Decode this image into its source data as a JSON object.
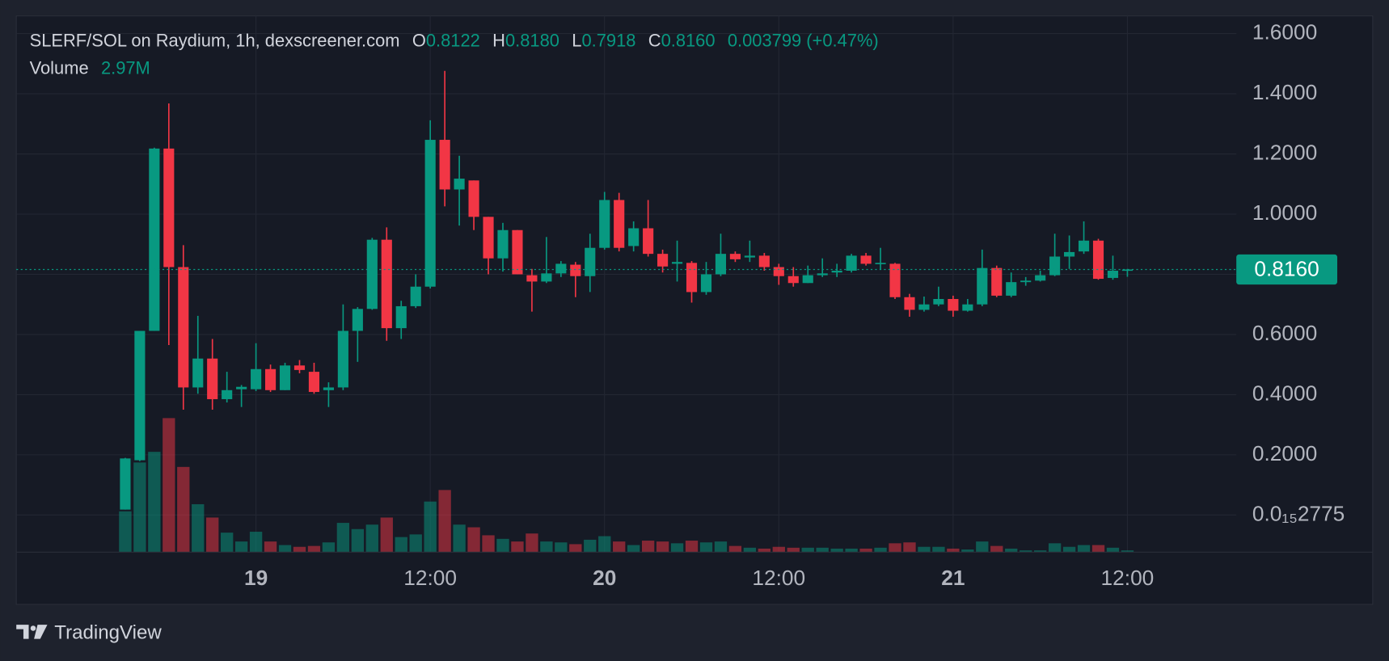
{
  "chart_data": {
    "type": "candlestick",
    "legend": {
      "title": "SLERF/SOL on Raydium, 1h, dexscreener.com",
      "o_label": "O",
      "o": "0.8122",
      "h_label": "H",
      "h": "0.8180",
      "l_label": "L",
      "l": "0.7918",
      "c_label": "C",
      "c": "0.8160",
      "change": "0.003799 (+0.47%)",
      "volume_label": "Volume",
      "volume_value": "2.97M"
    },
    "up_color": "#089981",
    "down_color": "#f23645",
    "last_price": 0.816,
    "last_price_label": "0.8160",
    "ylim": [
      -0.1235,
      1.6588
    ],
    "yticks": [
      {
        "value": 2.775e-17,
        "label": "0.0₁₅2775"
      },
      {
        "value": 0.2,
        "label": "0.2000"
      },
      {
        "value": 0.4,
        "label": "0.4000"
      },
      {
        "value": 0.6,
        "label": "0.6000"
      },
      {
        "value": 0.8,
        "label": "0.8000"
      },
      {
        "value": 1.0,
        "label": "1.0000"
      },
      {
        "value": 1.2,
        "label": "1.2000"
      },
      {
        "value": 1.4,
        "label": "1.4000"
      },
      {
        "value": 1.6,
        "label": "1.6000"
      }
    ],
    "xlim": [
      "18 07:30",
      "21 19:30"
    ],
    "xticks": [
      {
        "value": "19 00:00",
        "label": "19"
      },
      {
        "value": "19 12:00",
        "label": "12:00"
      },
      {
        "value": "20 00:00",
        "label": "20"
      },
      {
        "value": "20 12:00",
        "label": "12:00"
      },
      {
        "value": "21 00:00",
        "label": "21"
      },
      {
        "value": "21 12:00",
        "label": "12:00"
      }
    ],
    "grid": true,
    "x": [
      "18 15:00",
      "18 16:00",
      "18 17:00",
      "18 18:00",
      "18 19:00",
      "18 20:00",
      "18 21:00",
      "18 22:00",
      "18 23:00",
      "19 00:00",
      "19 01:00",
      "19 02:00",
      "19 03:00",
      "19 04:00",
      "19 05:00",
      "19 06:00",
      "19 07:00",
      "19 08:00",
      "19 09:00",
      "19 10:00",
      "19 11:00",
      "19 12:00",
      "19 13:00",
      "19 14:00",
      "19 15:00",
      "19 16:00",
      "19 17:00",
      "19 18:00",
      "19 19:00",
      "19 20:00",
      "19 21:00",
      "19 22:00",
      "19 23:00",
      "20 00:00",
      "20 01:00",
      "20 02:00",
      "20 03:00",
      "20 04:00",
      "20 05:00",
      "20 06:00",
      "20 07:00",
      "20 08:00",
      "20 09:00",
      "20 10:00",
      "20 11:00",
      "20 12:00",
      "20 13:00",
      "20 14:00",
      "20 15:00",
      "20 16:00",
      "20 17:00",
      "20 18:00",
      "20 19:00",
      "20 20:00",
      "20 21:00",
      "20 22:00",
      "20 23:00",
      "21 00:00",
      "21 01:00",
      "21 02:00",
      "21 03:00",
      "21 04:00",
      "21 05:00",
      "21 06:00",
      "21 07:00",
      "21 08:00",
      "21 09:00",
      "21 10:00",
      "21 11:00",
      "21 12:00"
    ],
    "open": [
      0.018,
      0.182,
      0.612,
      1.218,
      0.824,
      0.424,
      0.52,
      0.385,
      0.418,
      0.418,
      0.485,
      0.415,
      0.497,
      0.476,
      0.415,
      0.424,
      0.612,
      0.685,
      0.915,
      0.621,
      0.694,
      0.759,
      1.247,
      1.082,
      1.112,
      0.991,
      0.853,
      0.947,
      0.797,
      0.776,
      0.803,
      0.832,
      0.794,
      0.888,
      1.047,
      0.894,
      0.953,
      0.868,
      0.835,
      0.838,
      0.741,
      0.8,
      0.868,
      0.856,
      0.862,
      0.824,
      0.794,
      0.771,
      0.797,
      0.806,
      0.812,
      0.862,
      0.835,
      0.835,
      0.724,
      0.682,
      0.7,
      0.718,
      0.679,
      0.7,
      0.821,
      0.729,
      0.774,
      0.779,
      0.797,
      0.859,
      0.876,
      0.912,
      0.788,
      0.8122
    ],
    "high": [
      0.19,
      0.612,
      1.221,
      1.368,
      0.897,
      0.662,
      0.585,
      0.476,
      0.432,
      0.571,
      0.5,
      0.506,
      0.515,
      0.506,
      0.441,
      0.7,
      0.691,
      0.921,
      0.956,
      0.712,
      0.8,
      1.312,
      1.476,
      1.194,
      1.112,
      0.991,
      0.971,
      0.947,
      0.818,
      0.924,
      0.844,
      0.841,
      0.935,
      1.074,
      1.071,
      0.976,
      1.047,
      0.882,
      0.912,
      0.844,
      0.841,
      0.935,
      0.876,
      0.912,
      0.871,
      0.835,
      0.824,
      0.829,
      0.853,
      0.835,
      0.868,
      0.871,
      0.888,
      0.838,
      0.735,
      0.726,
      0.759,
      0.729,
      0.718,
      0.882,
      0.829,
      0.806,
      0.791,
      0.812,
      0.935,
      0.929,
      0.976,
      0.918,
      0.862,
      0.818
    ],
    "low": [
      0.018,
      0.179,
      0.612,
      0.565,
      0.35,
      0.403,
      0.35,
      0.374,
      0.359,
      0.412,
      0.409,
      0.415,
      0.471,
      0.403,
      0.359,
      0.415,
      0.509,
      0.682,
      0.579,
      0.585,
      0.688,
      0.753,
      1.026,
      0.962,
      0.947,
      0.8,
      0.809,
      0.8,
      0.676,
      0.771,
      0.791,
      0.724,
      0.741,
      0.882,
      0.876,
      0.876,
      0.859,
      0.806,
      0.776,
      0.706,
      0.732,
      0.794,
      0.841,
      0.841,
      0.812,
      0.765,
      0.759,
      0.771,
      0.791,
      0.791,
      0.806,
      0.829,
      0.815,
      0.718,
      0.659,
      0.676,
      0.694,
      0.659,
      0.676,
      0.694,
      0.724,
      0.724,
      0.762,
      0.776,
      0.794,
      0.818,
      0.868,
      0.782,
      0.782,
      0.7918
    ],
    "close": [
      0.188,
      0.612,
      1.218,
      0.824,
      0.424,
      0.52,
      0.385,
      0.415,
      0.426,
      0.485,
      0.415,
      0.497,
      0.482,
      0.409,
      0.424,
      0.612,
      0.685,
      0.915,
      0.621,
      0.694,
      0.759,
      1.247,
      1.082,
      1.118,
      0.991,
      0.853,
      0.947,
      0.8,
      0.776,
      0.803,
      0.835,
      0.794,
      0.888,
      1.047,
      0.888,
      0.953,
      0.868,
      0.826,
      0.841,
      0.741,
      0.8,
      0.868,
      0.85,
      0.862,
      0.824,
      0.794,
      0.771,
      0.797,
      0.803,
      0.812,
      0.862,
      0.835,
      0.838,
      0.724,
      0.682,
      0.7,
      0.718,
      0.679,
      0.7,
      0.821,
      0.729,
      0.774,
      0.779,
      0.797,
      0.859,
      0.874,
      0.912,
      0.785,
      0.812,
      0.816
    ],
    "volume": [
      69000000,
      151500000,
      169500000,
      226500000,
      144000000,
      81000000,
      58500000,
      33000000,
      18000000,
      34500000,
      18000000,
      12000000,
      9000000,
      10500000,
      16500000,
      49500000,
      39000000,
      46500000,
      58500000,
      25500000,
      30000000,
      85500000,
      105000000,
      46500000,
      42000000,
      28500000,
      22500000,
      18000000,
      31500000,
      18000000,
      16500000,
      13500000,
      21000000,
      27000000,
      18000000,
      12000000,
      19500000,
      18000000,
      15000000,
      19500000,
      16500000,
      18000000,
      10500000,
      7500000,
      6000000,
      9000000,
      7500000,
      7500000,
      7500000,
      6000000,
      6000000,
      6000000,
      7500000,
      15000000,
      16500000,
      9000000,
      9000000,
      6000000,
      4500000,
      18000000,
      10500000,
      6000000,
      3000000,
      3000000,
      15000000,
      9000000,
      12000000,
      12000000,
      7500000,
      2970000
    ]
  },
  "branding": "TradingView"
}
